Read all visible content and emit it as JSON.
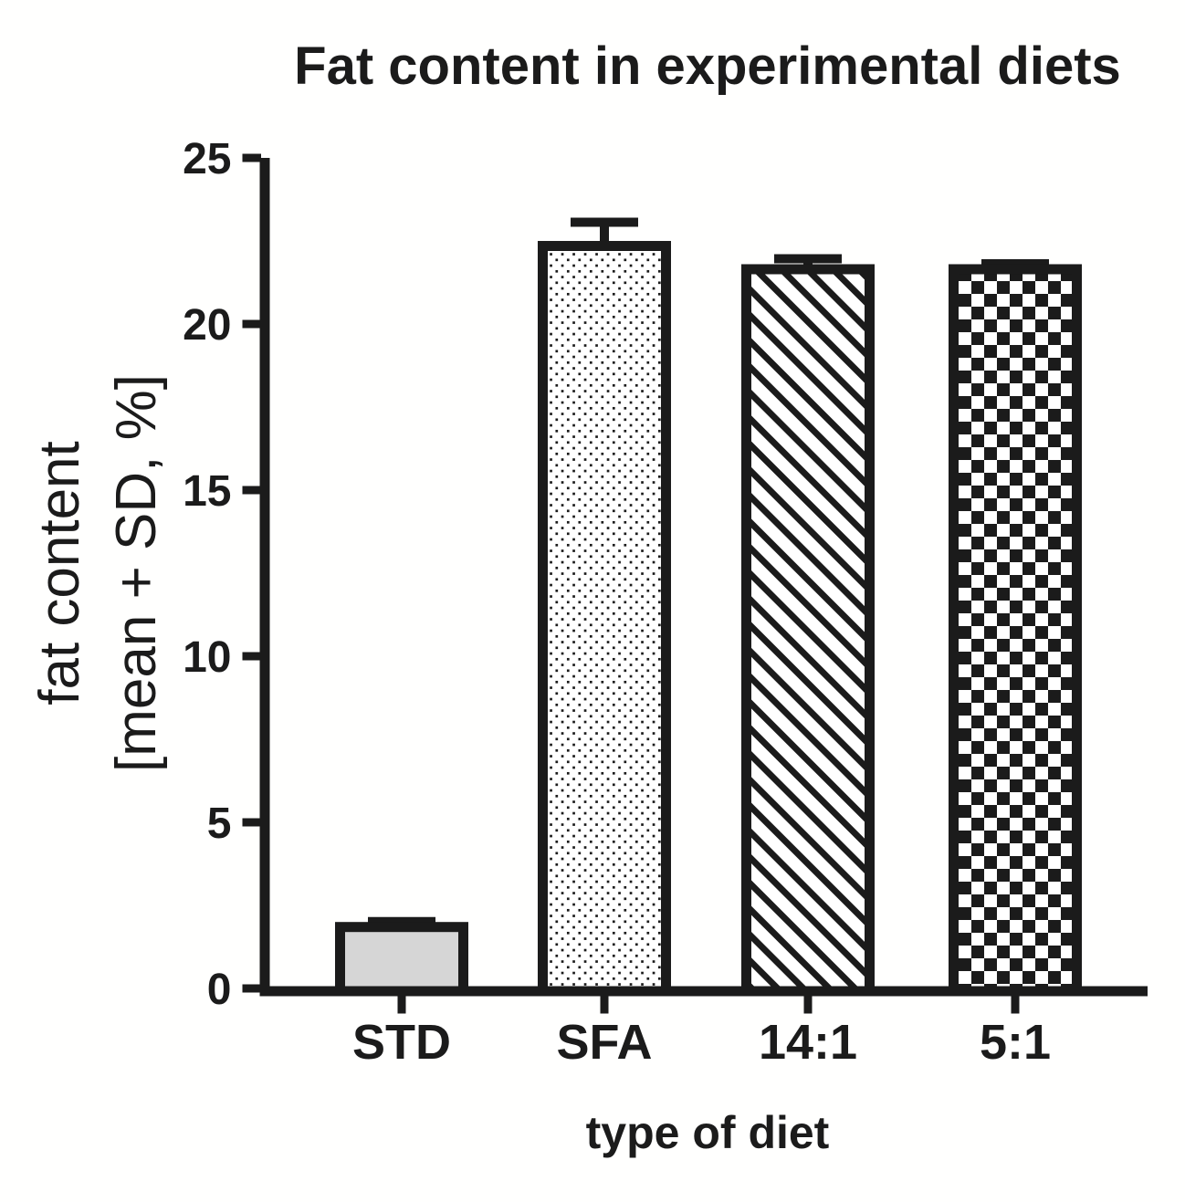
{
  "title": "Fat content in experimental diets",
  "y_axis": {
    "label_line1": "fat content",
    "label_line2": "[mean + SD, %]",
    "ticks": [
      0,
      5,
      10,
      15,
      20,
      25
    ]
  },
  "x_axis": {
    "label": "type of diet",
    "categories": [
      "STD",
      "SFA",
      "14:1",
      "5:1"
    ]
  },
  "chart_data": {
    "type": "bar",
    "title": "Fat content in experimental diets",
    "xlabel": "type of diet",
    "ylabel": "fat content [mean + SD, %]",
    "categories": [
      "STD",
      "SFA",
      "14:1",
      "5:1"
    ],
    "series": [
      {
        "name": "fat content mean (%)",
        "values": [
          2.0,
          22.5,
          21.8,
          21.8
        ]
      }
    ],
    "error_sd": [
      0.15,
      0.7,
      0.3,
      0.15
    ],
    "error_style": "upper SD whisker with cap",
    "bar_styles": [
      "solid-lightgray",
      "dots",
      "diagonal-stripes",
      "checkerboard"
    ],
    "ylim": [
      0,
      25
    ],
    "ytick_step": 5,
    "grid": false,
    "legend": "none"
  },
  "colors": {
    "ink": "#1b1b1b",
    "std_fill": "#d6d6d6",
    "pattern_bg": "#ffffff",
    "background": "#fffffe"
  }
}
